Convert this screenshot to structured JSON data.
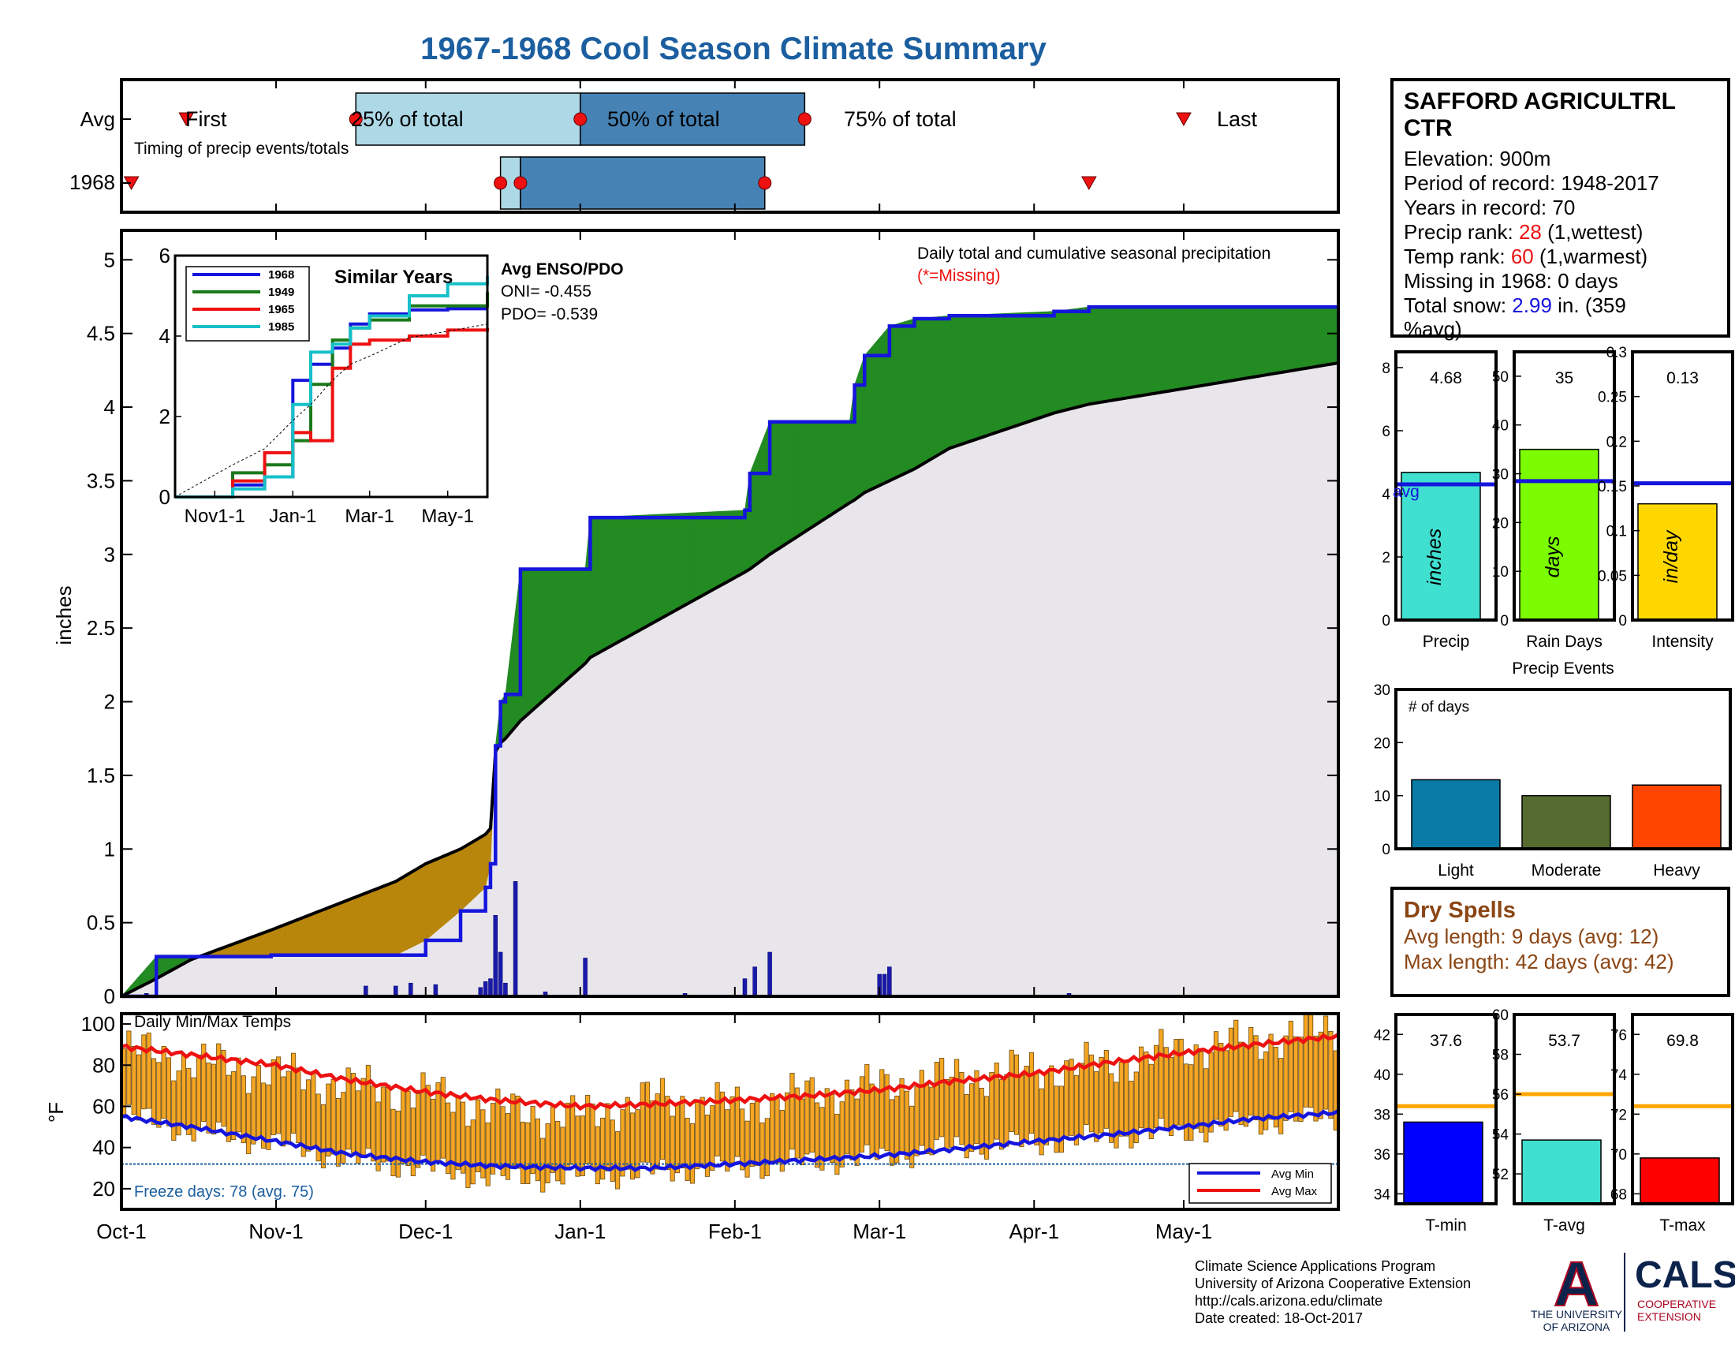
{
  "title": "1967-1968 Cool Season Climate Summary",
  "timing": {
    "label": "Timing of precip events/totals",
    "rows": [
      "Avg",
      "1968"
    ],
    "labels": [
      "First",
      "25% of total",
      "50% of total",
      "75% of total",
      "Last"
    ],
    "avg": {
      "first": "Oct-14",
      "p25": "Nov-17",
      "p50": "Jan-01",
      "p75": "Feb-15",
      "last": "May-01"
    },
    "y1968": {
      "first": "Oct-03",
      "p25": "Dec-16",
      "p50": "Dec-20",
      "p75": "Feb-07",
      "last": "Apr-12"
    },
    "colors": {
      "q1": "#add8e6",
      "q2": "#4682b4",
      "marker": "#ee1111"
    }
  },
  "main": {
    "ylabel": "inches",
    "yticks": [
      "0",
      "0.5",
      "1",
      "1.5",
      "2",
      "2.5",
      "3",
      "3.5",
      "4",
      "4.5",
      "5"
    ],
    "annotation": "Daily total and cumulative seasonal precipitation",
    "missing_note": "(*=Missing)",
    "enso": {
      "title": "Avg ENSO/PDO",
      "oni": "ONI= -0.455",
      "pdo": "PDO= -0.539"
    }
  },
  "similar": {
    "title": "Similar Years",
    "xticks": [
      "Nov1-1",
      "Jan-1",
      "Mar-1",
      "May-1"
    ],
    "yticks": [
      "0",
      "2",
      "4",
      "6"
    ],
    "legend": [
      {
        "name": "1968",
        "color": "#1515dd"
      },
      {
        "name": "1949",
        "color": "#1a7a1a"
      },
      {
        "name": "1965",
        "color": "#ee1111"
      },
      {
        "name": "1985",
        "color": "#15c0c8"
      }
    ]
  },
  "temps": {
    "label": "Daily Min/Max Temps",
    "ylabel": "°F",
    "yticks": [
      "20",
      "40",
      "60",
      "80",
      "100"
    ],
    "freeze": "Freeze days: 78 (avg. 75)",
    "legend": [
      "Avg Min",
      "Avg Max"
    ]
  },
  "months": [
    "Oct-1",
    "Nov-1",
    "Dec-1",
    "Jan-1",
    "Feb-1",
    "Mar-1",
    "Apr-1",
    "May-1"
  ],
  "station": {
    "name1": "SAFFORD AGRICULTRL",
    "name2": "CTR",
    "elevation": "Elevation: 900m",
    "period": "Period of record: 1948-2017",
    "years": "Years in record: 70",
    "precip_rank_label": "Precip rank: ",
    "precip_rank": "28",
    "precip_rank_note": " (1,wettest)",
    "temp_rank_label": "Temp rank: ",
    "temp_rank": "60",
    "temp_rank_note": " (1,warmest)",
    "missing": "Missing in 1968: 0 days",
    "snow_label": "Total snow: ",
    "snow": "2.99",
    "snow_note1": " in. (359",
    "snow_note2": "%avg)"
  },
  "bars": {
    "precip": {
      "value_label": "4.68",
      "unit": "inches",
      "caption": "Precip",
      "avg_label": "avg",
      "yticks": [
        "0",
        "2",
        "4",
        "6",
        "8"
      ]
    },
    "raindays": {
      "value_label": "35",
      "unit": "days",
      "caption": "Rain Days",
      "yticks": [
        "0",
        "10",
        "20",
        "30",
        "40",
        "50"
      ]
    },
    "intensity": {
      "value_label": "0.13",
      "unit": "in/day",
      "caption": "Intensity",
      "yticks": [
        "0",
        "0.05",
        "0.1",
        "0.15",
        "0.2",
        "0.25",
        "0.3"
      ]
    }
  },
  "events": {
    "title": "Precip Events",
    "label": "# of days",
    "yticks": [
      "0",
      "10",
      "20",
      "30"
    ],
    "categories": [
      "Light",
      "Moderate",
      "Heavy"
    ]
  },
  "dry": {
    "title": "Dry Spells",
    "avg": "Avg length: 9 days (avg: 12)",
    "max": "Max length: 42 days (avg: 42)"
  },
  "tbars": {
    "tmin": {
      "value_label": "37.6",
      "caption": "T-min",
      "yticks": [
        "34",
        "36",
        "38",
        "40",
        "42"
      ]
    },
    "tavg": {
      "value_label": "53.7",
      "caption": "T-avg",
      "yticks": [
        "52",
        "54",
        "56",
        "58",
        "60"
      ]
    },
    "tmax": {
      "value_label": "69.8",
      "caption": "T-max",
      "yticks": [
        "68",
        "70",
        "72",
        "74",
        "76"
      ]
    }
  },
  "footer": {
    "line1": "Climate Science Applications Program",
    "line2": "University of Arizona Cooperative Extension",
    "line3": "http://cals.arizona.edu/climate",
    "line4": " Date created: 18-Oct-2017"
  },
  "logos": {
    "ua_letter": "A",
    "ua_line1": "THE UNIVERSITY",
    "ua_line2": "OF ARIZONA",
    "cals": "CALS",
    "cals_line1": "COOPERATIVE",
    "cals_line2": "EXTENSION"
  },
  "chart_data": [
    {
      "id": "cumulative_precip",
      "type": "area",
      "x_dates": [
        "Oct-1",
        "Oct-8",
        "Oct-15",
        "Oct-31",
        "Nov-25",
        "Dec-1",
        "Dec-8",
        "Dec-13",
        "Dec-14",
        "Dec-15",
        "Dec-16",
        "Dec-17",
        "Dec-20",
        "Jan-2",
        "Jan-3",
        "Feb-3",
        "Feb-4",
        "Feb-8",
        "Feb-24",
        "Feb-25",
        "Feb-27",
        "Mar-3",
        "Mar-8",
        "Mar-15",
        "Apr-5",
        "Apr-12",
        "Apr-30",
        "Jun-1"
      ],
      "series": [
        {
          "name": "1968",
          "values": [
            0.0,
            0.27,
            0.27,
            0.28,
            0.28,
            0.38,
            0.58,
            0.74,
            0.9,
            1.7,
            2.0,
            2.05,
            2.9,
            2.9,
            3.25,
            3.3,
            3.55,
            3.9,
            3.9,
            4.15,
            4.35,
            4.55,
            4.6,
            4.62,
            4.65,
            4.68,
            4.68,
            4.68
          ]
        },
        {
          "name": "Avg",
          "values": [
            0.0,
            0.12,
            0.25,
            0.45,
            0.78,
            0.9,
            1.0,
            1.1,
            1.14,
            1.66,
            1.72,
            1.75,
            1.87,
            2.26,
            2.3,
            2.88,
            2.9,
            3.0,
            3.35,
            3.37,
            3.42,
            3.5,
            3.58,
            3.72,
            3.96,
            4.02,
            4.12,
            4.3
          ]
        }
      ],
      "xlabel": "",
      "ylabel": "inches",
      "ylim": [
        0,
        5.2
      ]
    },
    {
      "id": "daily_precip",
      "type": "bar",
      "dates": [
        "Oct-6",
        "Nov-19",
        "Nov-25",
        "Nov-28",
        "Dec-3",
        "Dec-12",
        "Dec-13",
        "Dec-14",
        "Dec-15",
        "Dec-16",
        "Dec-17",
        "Dec-19",
        "Dec-25",
        "Jan-2",
        "Jan-22",
        "Feb-3",
        "Feb-5",
        "Feb-8",
        "Mar-1",
        "Mar-2",
        "Mar-3",
        "Apr-8"
      ],
      "values": [
        0.02,
        0.07,
        0.07,
        0.09,
        0.08,
        0.06,
        0.1,
        0.12,
        0.55,
        0.3,
        0.09,
        0.78,
        0.03,
        0.26,
        0.02,
        0.12,
        0.2,
        0.3,
        0.15,
        0.15,
        0.2,
        0.02
      ]
    },
    {
      "id": "similar_years",
      "type": "line",
      "x_dates": [
        "Oct-1",
        "Nov-15",
        "Dec-10",
        "Jan-1",
        "Jan-15",
        "Feb-1",
        "Feb-15",
        "Mar-1",
        "Apr-1",
        "May-1",
        "Jun-1"
      ],
      "series": [
        {
          "name": "1968",
          "values": [
            0.0,
            0.3,
            0.5,
            2.9,
            3.3,
            3.7,
            4.3,
            4.55,
            4.65,
            4.68,
            4.68
          ]
        },
        {
          "name": "1949",
          "values": [
            0.0,
            0.6,
            0.8,
            1.4,
            2.8,
            3.9,
            4.2,
            4.4,
            4.75,
            4.75,
            5.1
          ]
        },
        {
          "name": "1965",
          "values": [
            0.0,
            0.4,
            1.1,
            1.6,
            1.4,
            3.2,
            3.8,
            3.9,
            4.0,
            4.15,
            4.2
          ]
        },
        {
          "name": "1985",
          "values": [
            0.0,
            0.2,
            0.5,
            2.3,
            3.6,
            3.8,
            4.2,
            4.5,
            5.0,
            5.3,
            5.5
          ]
        },
        {
          "name": "Avg",
          "values": [
            0.0,
            0.8,
            1.2,
            1.9,
            2.3,
            2.9,
            3.3,
            3.5,
            3.96,
            4.12,
            4.3
          ]
        }
      ],
      "ylim": [
        0,
        6
      ]
    },
    {
      "id": "daily_temps",
      "type": "bar",
      "x_dates": [
        "Oct-1",
        "Oct-15",
        "Nov-1",
        "Nov-15",
        "Dec-1",
        "Dec-15",
        "Jan-1",
        "Jan-15",
        "Feb-1",
        "Feb-15",
        "Mar-1",
        "Mar-15",
        "Apr-1",
        "Apr-15",
        "May-1",
        "May-15",
        "Jun-1"
      ],
      "avg_max": [
        89,
        85,
        80,
        73,
        67,
        63,
        60,
        61,
        63,
        65,
        68,
        72,
        76,
        81,
        86,
        90,
        94
      ],
      "avg_min": [
        55,
        50,
        43,
        37,
        33,
        31,
        30,
        30,
        32,
        34,
        36,
        39,
        43,
        46,
        50,
        54,
        57
      ],
      "obs_max": [
        88,
        82,
        76,
        70,
        66,
        58,
        55,
        64,
        60,
        66,
        70,
        74,
        78,
        80,
        88,
        92,
        98
      ],
      "obs_min": [
        56,
        48,
        42,
        34,
        30,
        25,
        26,
        28,
        30,
        33,
        35,
        40,
        42,
        45,
        48,
        52,
        55
      ],
      "ylim": [
        10,
        105
      ],
      "freeze_threshold": 32
    },
    {
      "id": "precip_total",
      "type": "bar",
      "categories": [
        "Precip"
      ],
      "values": [
        4.68
      ],
      "avg": 4.3,
      "ylim": [
        0,
        8.5
      ]
    },
    {
      "id": "rain_days",
      "type": "bar",
      "categories": [
        "Rain Days"
      ],
      "values": [
        35
      ],
      "avg": 28.5,
      "ylim": [
        0,
        55
      ]
    },
    {
      "id": "intensity",
      "type": "bar",
      "categories": [
        "Intensity"
      ],
      "values": [
        0.13
      ],
      "avg": 0.153,
      "ylim": [
        0,
        0.3
      ]
    },
    {
      "id": "precip_events",
      "type": "bar",
      "categories": [
        "Light",
        "Moderate",
        "Heavy"
      ],
      "values": [
        13,
        10,
        12
      ],
      "ylim": [
        0,
        30
      ],
      "colors": [
        "#0a7aa7",
        "#556b2f",
        "#ff4500"
      ]
    },
    {
      "id": "tmin",
      "type": "bar",
      "categories": [
        "T-min"
      ],
      "values": [
        37.6
      ],
      "avg": 38.4,
      "ylim": [
        33.5,
        43
      ]
    },
    {
      "id": "tavg",
      "type": "bar",
      "categories": [
        "T-avg"
      ],
      "values": [
        53.7
      ],
      "avg": 56.0,
      "ylim": [
        50.5,
        60
      ]
    },
    {
      "id": "tmax",
      "type": "bar",
      "categories": [
        "T-max"
      ],
      "values": [
        69.8
      ],
      "avg": 72.4,
      "ylim": [
        67.5,
        77
      ]
    }
  ]
}
